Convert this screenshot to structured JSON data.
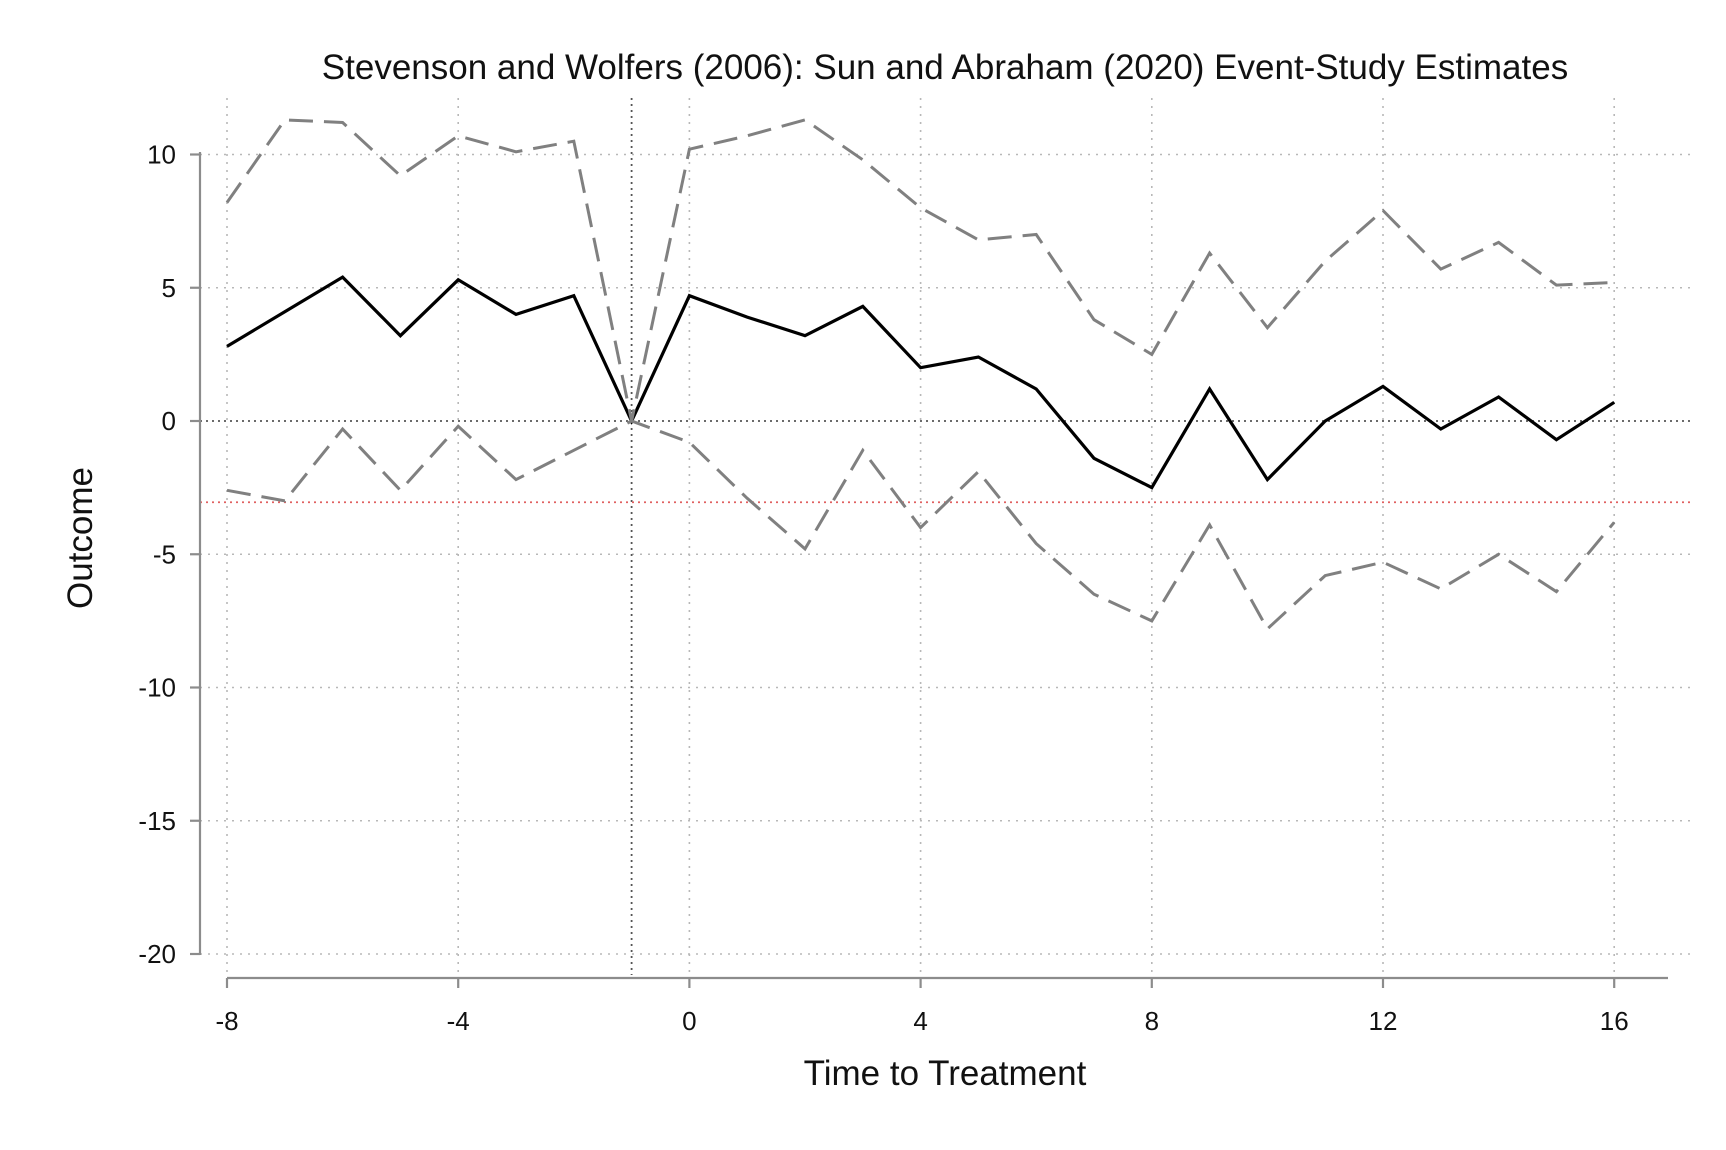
{
  "chart_data": {
    "type": "line",
    "title": "Stevenson and Wolfers (2006): Sun and Abraham (2020) Event-Study Estimates",
    "xlabel": "Time to Treatment",
    "ylabel": "Outcome",
    "xlim": [
      -8,
      17
    ],
    "ylim": [
      -20,
      12
    ],
    "x_ticks": [
      -8,
      -4,
      0,
      4,
      8,
      12,
      16
    ],
    "y_ticks": [
      10,
      5,
      0,
      -5,
      -10,
      -15,
      -20
    ],
    "grid": true,
    "reference_lines": {
      "x_ref": -1,
      "y_zero": 0,
      "y_red": -3.05,
      "red_color": "#e06060"
    },
    "x": [
      -8,
      -7,
      -6,
      -5,
      -4,
      -3,
      -2,
      -1,
      0,
      1,
      2,
      3,
      4,
      5,
      6,
      7,
      8,
      9,
      10,
      11,
      12,
      13,
      14,
      15,
      16
    ],
    "series": [
      {
        "role": "estimate",
        "color": "#000000",
        "style": "solid",
        "values": [
          2.8,
          4.1,
          5.4,
          3.2,
          5.3,
          4.0,
          4.7,
          0.0,
          4.7,
          3.9,
          3.2,
          4.3,
          2.0,
          2.4,
          1.2,
          -1.4,
          -2.5,
          1.2,
          -2.2,
          0.0,
          1.3,
          -0.3,
          0.9,
          -0.7,
          0.7
        ]
      },
      {
        "role": "upper-ci",
        "color": "#808080",
        "style": "dashed",
        "values": [
          8.2,
          11.3,
          11.2,
          9.2,
          10.7,
          10.1,
          10.5,
          0.0,
          10.2,
          10.7,
          11.3,
          9.8,
          8.0,
          6.8,
          7.0,
          3.8,
          2.5,
          6.3,
          3.5,
          6.0,
          7.9,
          5.7,
          6.7,
          5.1,
          5.2
        ]
      },
      {
        "role": "lower-ci",
        "color": "#808080",
        "style": "dashed",
        "values": [
          -2.6,
          -3.0,
          -0.3,
          -2.6,
          -0.2,
          -2.2,
          -1.1,
          0.0,
          -0.8,
          -2.9,
          -4.8,
          -1.1,
          -4.0,
          -1.9,
          -4.6,
          -6.5,
          -7.5,
          -3.9,
          -7.8,
          -5.8,
          -5.3,
          -6.3,
          -5.0,
          -6.4,
          -3.8
        ]
      }
    ]
  }
}
